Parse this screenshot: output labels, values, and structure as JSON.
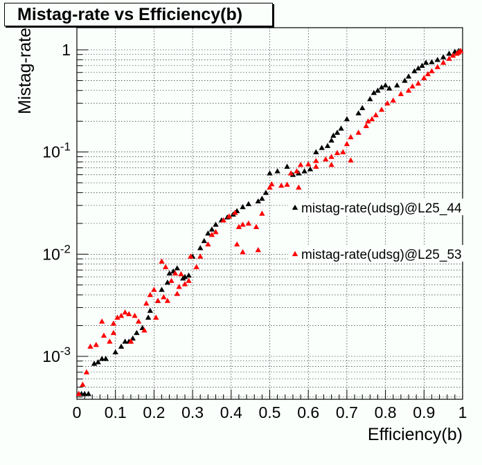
{
  "chart_data": {
    "type": "scatter",
    "title": "Mistag-rate vs Efficiency(b)",
    "xlabel": "Efficiency(b)",
    "ylabel": "Mistag-rate",
    "xlim": [
      0,
      1
    ],
    "ylim": [
      0.0004,
      1.3
    ],
    "yscale": "log",
    "grid": true,
    "legend_position": "right",
    "x_ticks": [
      "0",
      "0.1",
      "0.2",
      "0.3",
      "0.4",
      "0.5",
      "0.6",
      "0.7",
      "0.8",
      "0.9",
      "1"
    ],
    "x_tick_values": [
      0,
      0.1,
      0.2,
      0.3,
      0.4,
      0.5,
      0.6,
      0.7,
      0.8,
      0.9,
      1
    ],
    "y_ticks": [
      {
        "base": "1",
        "exp": ""
      },
      {
        "base": "10",
        "exp": "-1"
      },
      {
        "base": "10",
        "exp": "-2"
      },
      {
        "base": "10",
        "exp": "-3"
      }
    ],
    "y_tick_values": [
      1,
      0.1,
      0.01,
      0.001
    ],
    "series": [
      {
        "name": "mistag-rate(udsg)@L25_44",
        "color": "#000000",
        "marker": "triangle",
        "points": [
          [
            0.005,
            0.00043
          ],
          [
            0.012,
            0.00043
          ],
          [
            0.02,
            0.00043
          ],
          [
            0.03,
            0.00043
          ],
          [
            0.045,
            0.00085
          ],
          [
            0.055,
            0.00088
          ],
          [
            0.065,
            0.00095
          ],
          [
            0.075,
            0.00095
          ],
          [
            0.1,
            0.0011
          ],
          [
            0.115,
            0.00125
          ],
          [
            0.125,
            0.0014
          ],
          [
            0.135,
            0.0014
          ],
          [
            0.145,
            0.0015
          ],
          [
            0.155,
            0.0017
          ],
          [
            0.17,
            0.0019
          ],
          [
            0.185,
            0.0024
          ],
          [
            0.19,
            0.0028
          ],
          [
            0.21,
            0.0035
          ],
          [
            0.22,
            0.0045
          ],
          [
            0.235,
            0.0053
          ],
          [
            0.24,
            0.0065
          ],
          [
            0.25,
            0.0068
          ],
          [
            0.26,
            0.0073
          ],
          [
            0.275,
            0.0058
          ],
          [
            0.28,
            0.006
          ],
          [
            0.29,
            0.0062
          ],
          [
            0.3,
            0.0095
          ],
          [
            0.32,
            0.0115
          ],
          [
            0.33,
            0.0135
          ],
          [
            0.34,
            0.016
          ],
          [
            0.35,
            0.0175
          ],
          [
            0.36,
            0.0195
          ],
          [
            0.375,
            0.0215
          ],
          [
            0.39,
            0.023
          ],
          [
            0.405,
            0.0245
          ],
          [
            0.415,
            0.0265
          ],
          [
            0.43,
            0.029
          ],
          [
            0.445,
            0.031
          ],
          [
            0.47,
            0.033
          ],
          [
            0.48,
            0.035
          ],
          [
            0.49,
            0.04
          ],
          [
            0.5,
            0.062
          ],
          [
            0.52,
            0.065
          ],
          [
            0.545,
            0.072
          ],
          [
            0.56,
            0.06
          ],
          [
            0.575,
            0.062
          ],
          [
            0.59,
            0.065
          ],
          [
            0.605,
            0.068
          ],
          [
            0.62,
            0.1
          ],
          [
            0.635,
            0.11
          ],
          [
            0.65,
            0.115
          ],
          [
            0.66,
            0.13
          ],
          [
            0.665,
            0.145
          ],
          [
            0.675,
            0.155
          ],
          [
            0.685,
            0.17
          ],
          [
            0.7,
            0.21
          ],
          [
            0.73,
            0.24
          ],
          [
            0.74,
            0.27
          ],
          [
            0.76,
            0.33
          ],
          [
            0.77,
            0.38
          ],
          [
            0.78,
            0.4
          ],
          [
            0.79,
            0.43
          ],
          [
            0.8,
            0.45
          ],
          [
            0.81,
            0.42
          ],
          [
            0.83,
            0.45
          ],
          [
            0.85,
            0.5
          ],
          [
            0.86,
            0.55
          ],
          [
            0.875,
            0.62
          ],
          [
            0.885,
            0.66
          ],
          [
            0.895,
            0.7
          ],
          [
            0.905,
            0.75
          ],
          [
            0.92,
            0.76
          ],
          [
            0.935,
            0.8
          ],
          [
            0.95,
            0.85
          ],
          [
            0.965,
            0.92
          ],
          [
            0.98,
            0.96
          ],
          [
            0.99,
            0.98
          ]
        ]
      },
      {
        "name": "mistag-rate(udsg)@L25_53",
        "color": "#ff0000",
        "marker": "triangle",
        "points": [
          [
            0.005,
            0.00043
          ],
          [
            0.015,
            0.00053
          ],
          [
            0.025,
            0.0007
          ],
          [
            0.035,
            0.00125
          ],
          [
            0.05,
            0.0013
          ],
          [
            0.065,
            0.0022
          ],
          [
            0.07,
            0.0016
          ],
          [
            0.085,
            0.0014
          ],
          [
            0.095,
            0.0021
          ],
          [
            0.105,
            0.0024
          ],
          [
            0.115,
            0.0025
          ],
          [
            0.125,
            0.0027
          ],
          [
            0.135,
            0.0026
          ],
          [
            0.15,
            0.0025
          ],
          [
            0.175,
            0.0018
          ],
          [
            0.18,
            0.0033
          ],
          [
            0.19,
            0.004
          ],
          [
            0.2,
            0.0045
          ],
          [
            0.21,
            0.0035
          ],
          [
            0.22,
            0.0085
          ],
          [
            0.23,
            0.0075
          ],
          [
            0.245,
            0.0055
          ],
          [
            0.255,
            0.0065
          ],
          [
            0.265,
            0.0048
          ],
          [
            0.28,
            0.0051
          ],
          [
            0.29,
            0.0055
          ],
          [
            0.31,
            0.0075
          ],
          [
            0.32,
            0.0095
          ],
          [
            0.34,
            0.0125
          ],
          [
            0.35,
            0.0155
          ],
          [
            0.36,
            0.0165
          ],
          [
            0.38,
            0.0215
          ],
          [
            0.395,
            0.0235
          ],
          [
            0.41,
            0.0255
          ],
          [
            0.42,
            0.0185
          ],
          [
            0.43,
            0.0195
          ],
          [
            0.445,
            0.02
          ],
          [
            0.465,
            0.0185
          ],
          [
            0.48,
            0.025
          ],
          [
            0.5,
            0.045
          ],
          [
            0.505,
            0.0485
          ],
          [
            0.53,
            0.047
          ],
          [
            0.545,
            0.048
          ],
          [
            0.555,
            0.062
          ],
          [
            0.57,
            0.065
          ],
          [
            0.58,
            0.075
          ],
          [
            0.6,
            0.076
          ],
          [
            0.62,
            0.082
          ],
          [
            0.645,
            0.085
          ],
          [
            0.66,
            0.09
          ],
          [
            0.675,
            0.098
          ],
          [
            0.69,
            0.1
          ],
          [
            0.7,
            0.12
          ],
          [
            0.71,
            0.14
          ],
          [
            0.73,
            0.155
          ],
          [
            0.75,
            0.18
          ],
          [
            0.755,
            0.2
          ],
          [
            0.765,
            0.21
          ],
          [
            0.775,
            0.23
          ],
          [
            0.79,
            0.26
          ],
          [
            0.805,
            0.3
          ],
          [
            0.82,
            0.32
          ],
          [
            0.84,
            0.37
          ],
          [
            0.86,
            0.4
          ],
          [
            0.87,
            0.44
          ],
          [
            0.885,
            0.47
          ],
          [
            0.9,
            0.53
          ],
          [
            0.91,
            0.58
          ],
          [
            0.92,
            0.62
          ],
          [
            0.935,
            0.68
          ],
          [
            0.95,
            0.75
          ],
          [
            0.965,
            0.82
          ],
          [
            0.975,
            0.88
          ],
          [
            0.985,
            0.92
          ],
          [
            0.99,
            0.95
          ],
          [
            0.995,
            0.98
          ],
          [
            0.62,
            0.072
          ],
          [
            0.66,
            0.075
          ],
          [
            0.71,
            0.083
          ],
          [
            0.575,
            0.045
          ],
          [
            0.415,
            0.0125
          ],
          [
            0.43,
            0.0105
          ],
          [
            0.47,
            0.011
          ],
          [
            0.26,
            0.0041
          ],
          [
            0.295,
            0.0095
          ],
          [
            0.27,
            0.0064
          ],
          [
            0.225,
            0.0038
          ],
          [
            0.235,
            0.0035
          ],
          [
            0.205,
            0.0024
          ],
          [
            0.16,
            0.0022
          ],
          [
            0.14,
            0.0014
          ],
          [
            0.095,
            0.0017
          ]
        ]
      }
    ]
  }
}
